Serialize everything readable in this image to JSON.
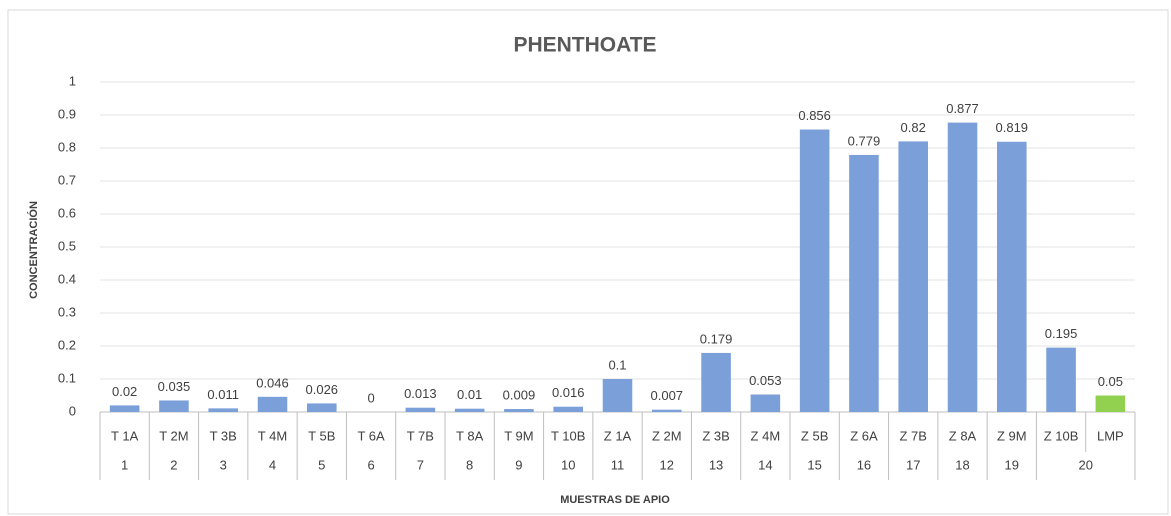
{
  "chart_data": {
    "type": "bar",
    "title": "PHENTHOATE",
    "y_label": "CONCENTRACIÓN",
    "x_label": "MUESTRAS DE APIO",
    "categories": [
      "T 1A",
      "T 2M",
      "T 3B",
      "T 4M",
      "T 5B",
      "T 6A",
      "T 7B",
      "T 8A",
      "T 9M",
      "T 10B",
      "Z 1A",
      "Z 2M",
      "Z 3B",
      "Z 4M",
      "Z 5B",
      "Z 6A",
      "Z 7B",
      "Z 8A",
      "Z 9M",
      "Z 10B",
      "LMP"
    ],
    "groups": [
      "1",
      "2",
      "3",
      "4",
      "5",
      "6",
      "7",
      "8",
      "9",
      "10",
      "11",
      "12",
      "13",
      "14",
      "15",
      "16",
      "17",
      "18",
      "19",
      "20",
      null
    ],
    "values": [
      0.02,
      0.035,
      0.011,
      0.046,
      0.026,
      0,
      0.013,
      0.01,
      0.009,
      0.016,
      0.1,
      0.007,
      0.179,
      0.053,
      0.856,
      0.779,
      0.82,
      0.877,
      0.819,
      0.195,
      0.05
    ],
    "colors": [
      "#7b9fd8",
      "#7b9fd8",
      "#7b9fd8",
      "#7b9fd8",
      "#7b9fd8",
      "#7b9fd8",
      "#7b9fd8",
      "#7b9fd8",
      "#7b9fd8",
      "#7b9fd8",
      "#7b9fd8",
      "#7b9fd8",
      "#7b9fd8",
      "#7b9fd8",
      "#7b9fd8",
      "#7b9fd8",
      "#7b9fd8",
      "#7b9fd8",
      "#7b9fd8",
      "#7b9fd8",
      "#92d050"
    ],
    "ylim": [
      0,
      1
    ],
    "yticks": [
      0,
      0.1,
      0.2,
      0.3,
      0.4,
      0.5,
      0.6,
      0.7,
      0.8,
      0.9,
      1
    ],
    "grid": true
  }
}
